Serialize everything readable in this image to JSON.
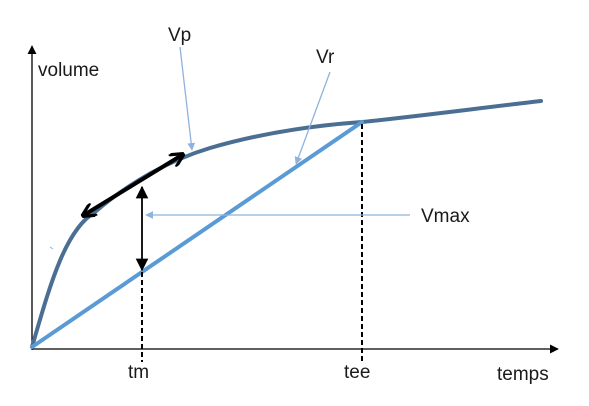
{
  "labels": {
    "y_axis": "volume",
    "x_axis": "temps",
    "curve_vp": "Vp",
    "line_vr": "Vr",
    "vmax": "Vmax",
    "tick_tm": "tm",
    "tick_tee": "tee"
  },
  "colors": {
    "curve_vp": "#4a6f93",
    "line_vr": "#5b9bd5",
    "axes": "#000000",
    "tangent": "#000000",
    "pointer": "#8fb3dc"
  }
}
